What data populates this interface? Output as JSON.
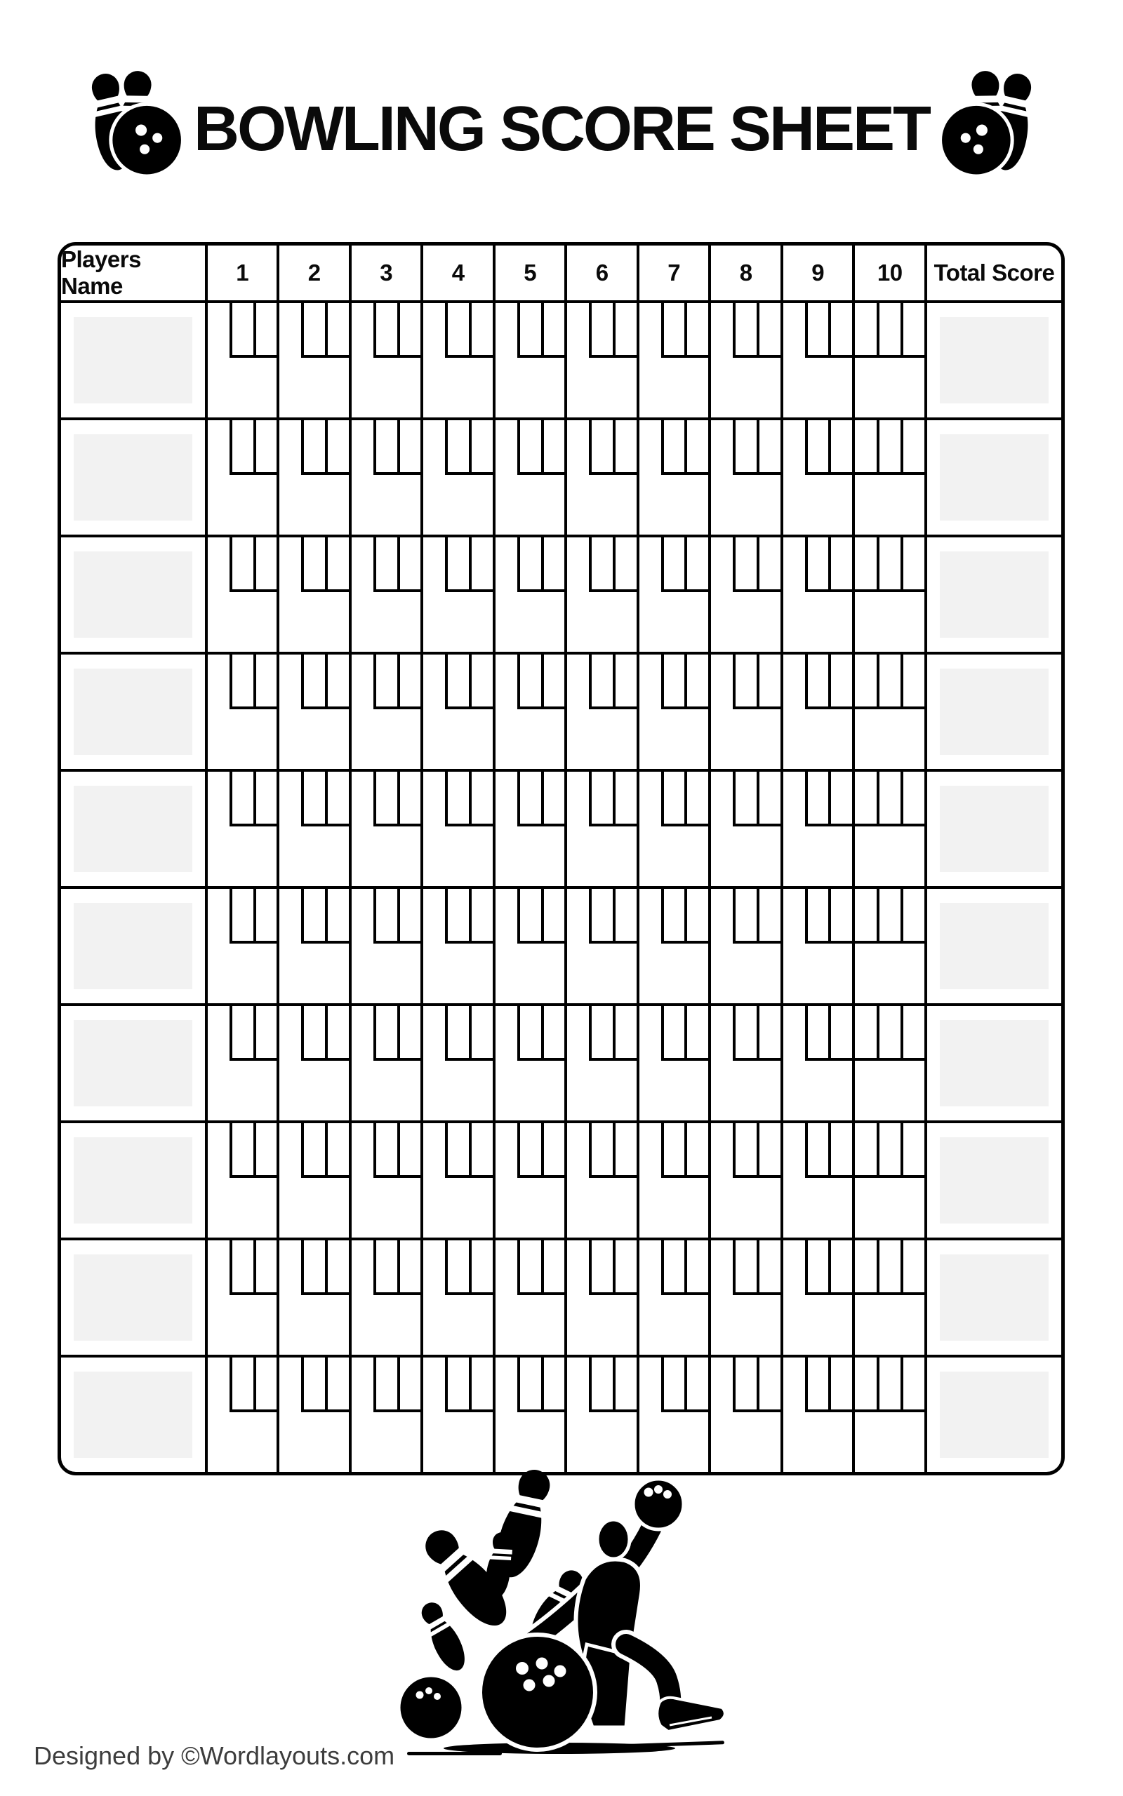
{
  "title": {
    "text": "BOWLING SCORE SHEET",
    "left_icon": "bowling-pins-ball-icon",
    "right_icon": "bowling-ball-pins-icon"
  },
  "table": {
    "columns": [
      "Players Name",
      "1",
      "2",
      "3",
      "4",
      "5",
      "6",
      "7",
      "8",
      "9",
      "10",
      "Total Score"
    ],
    "throw_boxes_per_frame": 2,
    "throw_boxes_tenth_frame": 3,
    "players": [
      {
        "name": "",
        "total": ""
      },
      {
        "name": "",
        "total": ""
      },
      {
        "name": "",
        "total": ""
      },
      {
        "name": "",
        "total": ""
      },
      {
        "name": "",
        "total": ""
      },
      {
        "name": "",
        "total": ""
      },
      {
        "name": "",
        "total": ""
      },
      {
        "name": "",
        "total": ""
      },
      {
        "name": "",
        "total": ""
      },
      {
        "name": "",
        "total": ""
      }
    ]
  },
  "illustration": "bowler-with-ball-and-pins",
  "footer": {
    "credit": "Designed by ©Wordlayouts.com"
  },
  "colors": {
    "ink": "#000000",
    "field_fill": "#f2f2f2",
    "footer_text": "#3d3d3d"
  }
}
